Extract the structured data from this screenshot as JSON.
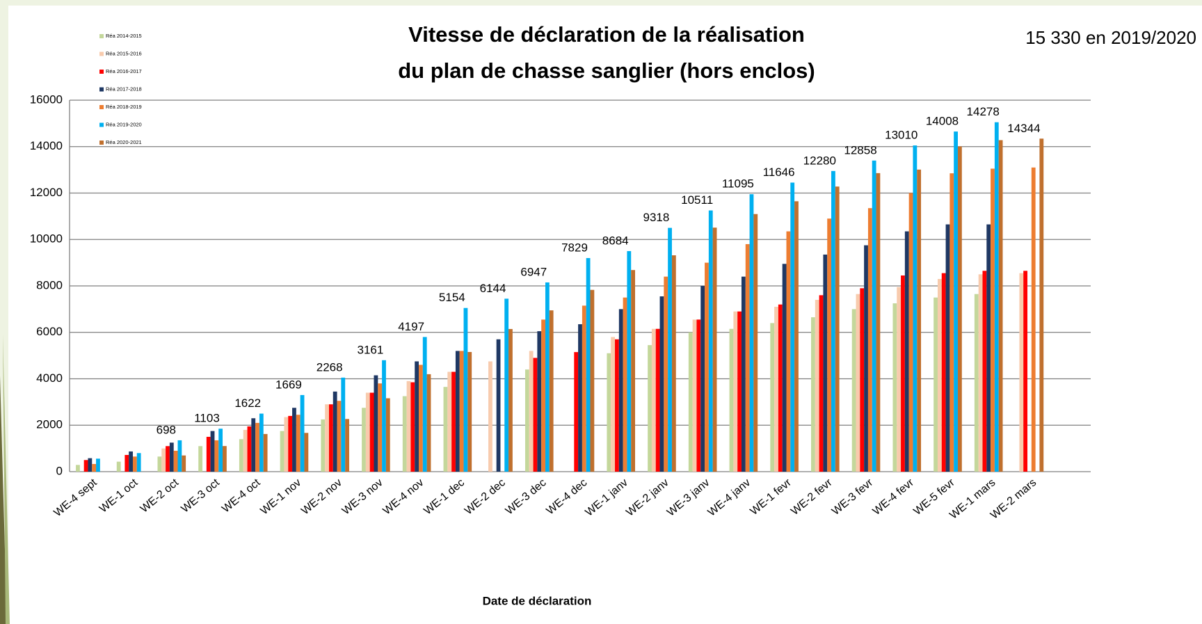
{
  "chart_data": {
    "type": "bar",
    "title": [
      "Vitesse de déclaration de la réalisation",
      "du plan de chasse sanglier (hors enclos)"
    ],
    "annotation": "15 330 en 2019/2020",
    "x_label": "Date de déclaration",
    "categories": [
      "WE-4 sept",
      "WE-1 oct",
      "WE-2 oct",
      "WE-3 oct",
      "WE-4 oct",
      "WE-1 nov",
      "WE-2 nov",
      "WE-3 nov",
      "WE-4 nov",
      "WE-1 dec",
      "WE-2 dec",
      "WE-3 dec",
      "WE-4 dec",
      "WE-1 janv",
      "WE-2 janv",
      "WE-3 janv",
      "WE-4 janv",
      "WE-1 fevr",
      "WE-2 fevr",
      "WE-3 fevr",
      "WE-4 fevr",
      "WE-5 fevr",
      "WE-1 mars",
      "WE-2 mars",
      null
    ],
    "series": [
      {
        "name": "Réa 2014-2015",
        "color": "#c4d79b",
        "values": [
          290,
          430,
          650,
          1100,
          1400,
          1750,
          2250,
          2750,
          3250,
          3650,
          null,
          4400,
          null,
          5100,
          5450,
          6000,
          6150,
          6400,
          6650,
          7000,
          7250,
          7500,
          7650,
          null,
          null
        ]
      },
      {
        "name": "Réa 2015-2016",
        "color": "#f8cbad",
        "values": [
          null,
          null,
          1000,
          null,
          1800,
          2350,
          2900,
          3400,
          3900,
          4300,
          4750,
          5200,
          null,
          5800,
          6150,
          6550,
          6900,
          7100,
          7400,
          7650,
          7950,
          8300,
          8500,
          8550,
          null
        ]
      },
      {
        "name": "Réa 2016-2017",
        "color": "#ff0000",
        "values": [
          500,
          720,
          1100,
          1500,
          1950,
          2400,
          2900,
          3400,
          3850,
          4300,
          null,
          4900,
          5150,
          5700,
          6150,
          6550,
          6900,
          7200,
          7600,
          7900,
          8450,
          8550,
          8650,
          8650,
          null
        ]
      },
      {
        "name": "Réa 2017-2018",
        "color": "#1f3864",
        "values": [
          580,
          870,
          1250,
          1750,
          2300,
          2750,
          3450,
          4150,
          4750,
          5200,
          5700,
          6050,
          6350,
          7000,
          7550,
          8000,
          8400,
          8950,
          9350,
          9750,
          10350,
          10650,
          10650,
          null,
          null
        ]
      },
      {
        "name": "Réa 2018-2019",
        "color": "#ed7d31",
        "values": [
          330,
          650,
          900,
          1350,
          2100,
          2450,
          3050,
          3800,
          4600,
          5200,
          null,
          6550,
          7150,
          7500,
          8400,
          9000,
          9800,
          10350,
          10900,
          11350,
          12000,
          12850,
          13050,
          13100,
          null
        ]
      },
      {
        "name": "Réa 2019-2020",
        "color": "#00b0f0",
        "values": [
          560,
          800,
          1350,
          1850,
          2500,
          3300,
          4050,
          4800,
          5800,
          7050,
          7450,
          8150,
          9200,
          9500,
          10500,
          11250,
          11950,
          12450,
          12950,
          13400,
          14050,
          14650,
          15050,
          null,
          null
        ]
      },
      {
        "name": "Réa 2020-2021",
        "color": "#c0702e",
        "values": [
          null,
          null,
          698,
          1103,
          1622,
          1669,
          2268,
          3161,
          4197,
          5154,
          6144,
          6947,
          7829,
          8684,
          9318,
          10511,
          11095,
          11646,
          12280,
          12858,
          13010,
          14008,
          14278,
          14344,
          null
        ],
        "data_labels": true
      }
    ],
    "ylim": [
      0,
      16000
    ],
    "yticks": [
      0,
      2000,
      4000,
      6000,
      8000,
      10000,
      12000,
      14000,
      16000
    ],
    "grid": true,
    "legend": "top-left"
  }
}
